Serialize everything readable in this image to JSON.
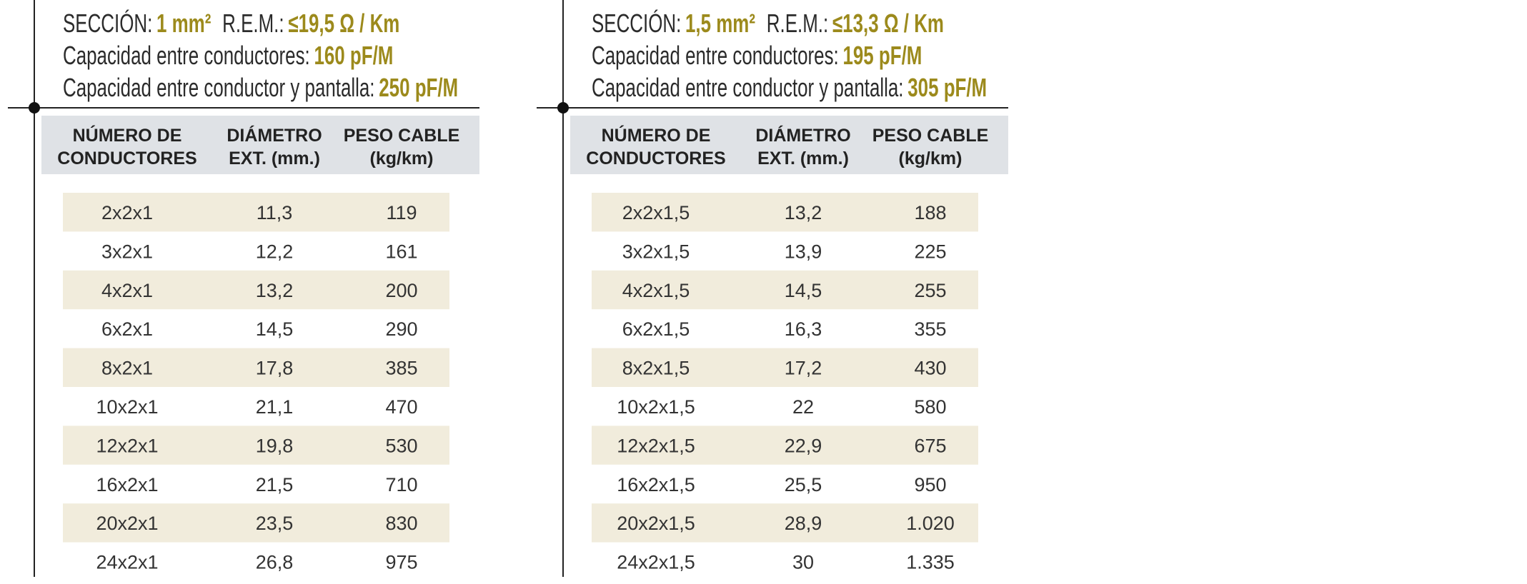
{
  "tables": [
    {
      "header": {
        "seccion_label": "SECCIÓN:",
        "seccion_value": "1 mm²",
        "rem_label": "R.E.M.:",
        "rem_value": "≤19,5 Ω / Km",
        "cap1_label": "Capacidad entre conductores:",
        "cap1_value": "160 pF/M",
        "cap2_label": "Capacidad entre conductor y pantalla:",
        "cap2_value": "250 pF/M"
      },
      "columns": [
        [
          "NÚMERO DE",
          "CONDUCTORES"
        ],
        [
          "DIÁMETRO",
          "EXT. (mm.)"
        ],
        [
          "PESO CABLE",
          "(kg/km)"
        ]
      ],
      "rows": [
        [
          "2x2x1",
          "11,3",
          "119"
        ],
        [
          "3x2x1",
          "12,2",
          "161"
        ],
        [
          "4x2x1",
          "13,2",
          "200"
        ],
        [
          "6x2x1",
          "14,5",
          "290"
        ],
        [
          "8x2x1",
          "17,8",
          "385"
        ],
        [
          "10x2x1",
          "21,1",
          "470"
        ],
        [
          "12x2x1",
          "19,8",
          "530"
        ],
        [
          "16x2x1",
          "21,5",
          "710"
        ],
        [
          "20x2x1",
          "23,5",
          "830"
        ],
        [
          "24x2x1",
          "26,8",
          "975"
        ]
      ]
    },
    {
      "header": {
        "seccion_label": "SECCIÓN:",
        "seccion_value": "1,5 mm²",
        "rem_label": "R.E.M.:",
        "rem_value": "≤13,3 Ω / Km",
        "cap1_label": "Capacidad entre conductores:",
        "cap1_value": "195 pF/M",
        "cap2_label": "Capacidad entre conductor y pantalla:",
        "cap2_value": "305 pF/M"
      },
      "columns": [
        [
          "NÚMERO DE",
          "CONDUCTORES"
        ],
        [
          "DIÁMETRO",
          "EXT. (mm.)"
        ],
        [
          "PESO CABLE",
          "(kg/km)"
        ]
      ],
      "rows": [
        [
          "2x2x1,5",
          "13,2",
          "188"
        ],
        [
          "3x2x1,5",
          "13,9",
          "225"
        ],
        [
          "4x2x1,5",
          "14,5",
          "255"
        ],
        [
          "6x2x1,5",
          "16,3",
          "355"
        ],
        [
          "8x2x1,5",
          "17,2",
          "430"
        ],
        [
          "10x2x1,5",
          "22",
          "580"
        ],
        [
          "12x2x1,5",
          "22,9",
          "675"
        ],
        [
          "16x2x1,5",
          "25,5",
          "950"
        ],
        [
          "20x2x1,5",
          "28,9",
          "1.020"
        ],
        [
          "24x2x1,5",
          "30",
          "1.335"
        ]
      ]
    }
  ]
}
